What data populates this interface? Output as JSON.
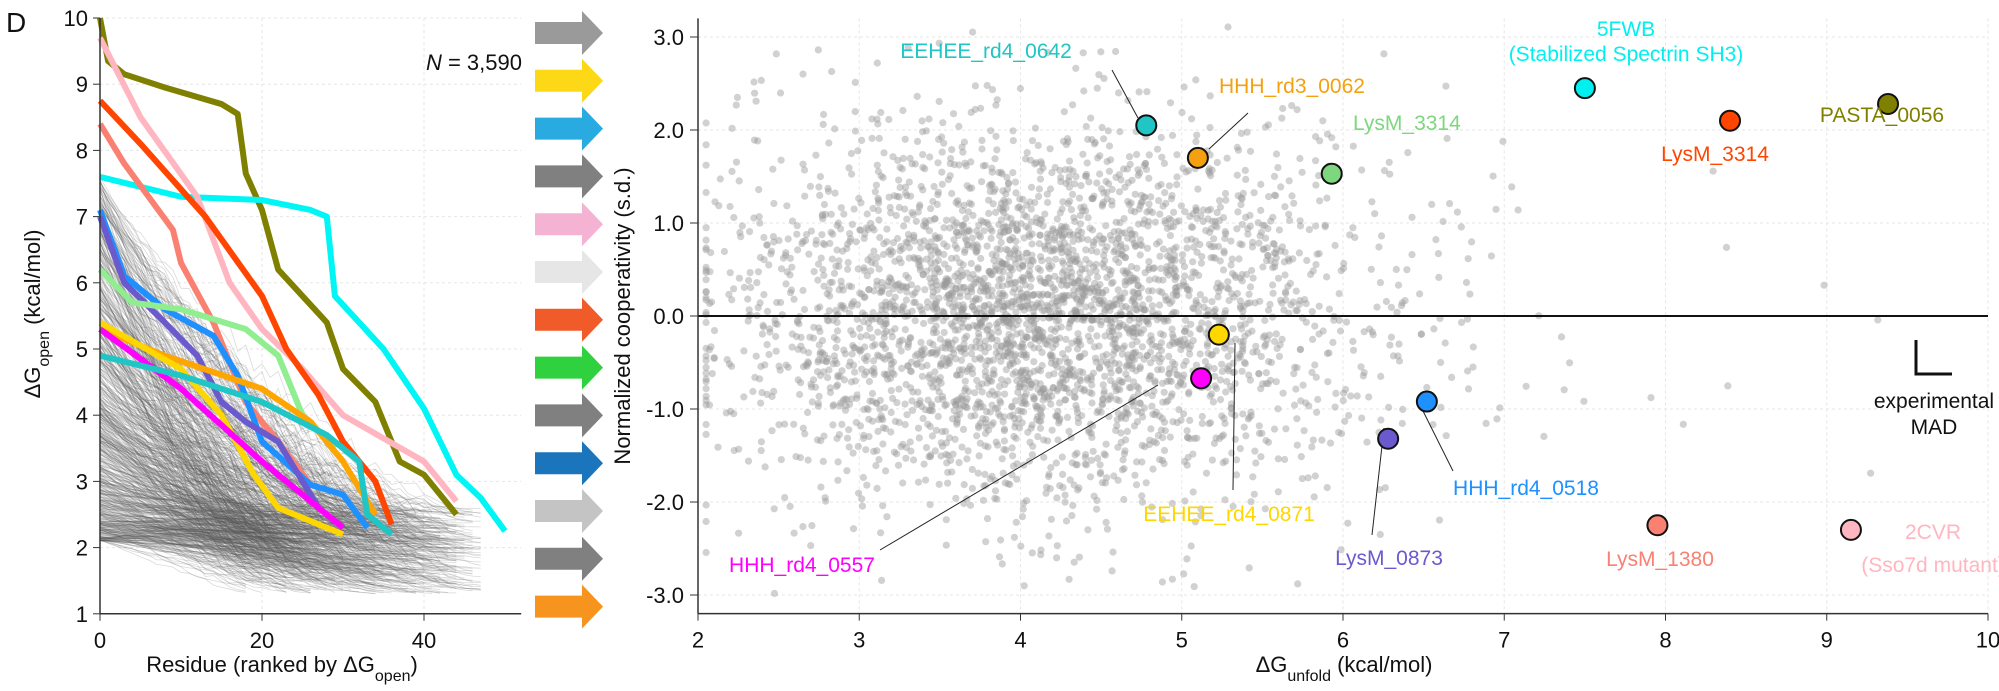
{
  "panel_label": "D",
  "arrows": {
    "colors": [
      "#9a9a9a",
      "#fdd816",
      "#29abe2",
      "#808080",
      "#f5b3d3",
      "#e6e6e6",
      "#f15a29",
      "#2fd13f",
      "#808080",
      "#1b75bc",
      "#c4c4c4",
      "#808080",
      "#f7941d"
    ]
  },
  "chart_data": [
    {
      "type": "line",
      "title": "",
      "annotation": {
        "italic": "N",
        "text": " = 3,590"
      },
      "xlabel": {
        "main": "Residue (ranked by ΔG",
        "sub": "open",
        "end": ")"
      },
      "ylabel": {
        "main": "ΔG",
        "sub": "open",
        "end": " (kcal/mol)"
      },
      "xlim": [
        0,
        52
      ],
      "ylim": [
        1,
        10
      ],
      "xticks": [
        "0",
        "20",
        "40"
      ],
      "xtick_values": [
        0,
        20,
        40
      ],
      "yticks": [
        "1",
        "2",
        "3",
        "4",
        "5",
        "6",
        "7",
        "8",
        "9",
        "10"
      ],
      "ytick_values": [
        1,
        2,
        3,
        4,
        5,
        6,
        7,
        8,
        9,
        10
      ],
      "grid": true,
      "background_series_count": 3590,
      "background_color": "#555555",
      "series": [
        {
          "name": "PASTA_0056",
          "color": "#808000",
          "points": [
            [
              0,
              10
            ],
            [
              1,
              9.35
            ],
            [
              3,
              9.15
            ],
            [
              8,
              8.95
            ],
            [
              15,
              8.7
            ],
            [
              17,
              8.55
            ],
            [
              18,
              7.65
            ],
            [
              20,
              7.1
            ],
            [
              22,
              6.2
            ],
            [
              25,
              5.8
            ],
            [
              28,
              5.4
            ],
            [
              30,
              4.7
            ],
            [
              34,
              4.2
            ],
            [
              37,
              3.3
            ],
            [
              40,
              3.1
            ],
            [
              44,
              2.5
            ]
          ]
        },
        {
          "name": "5FWB",
          "color": "#00f5f5",
          "points": [
            [
              0,
              7.6
            ],
            [
              10,
              7.3
            ],
            [
              20,
              7.25
            ],
            [
              26,
              7.1
            ],
            [
              28,
              7.0
            ],
            [
              29,
              5.8
            ],
            [
              35,
              5.0
            ],
            [
              40,
              4.1
            ],
            [
              44,
              3.1
            ],
            [
              47,
              2.75
            ],
            [
              50,
              2.25
            ]
          ]
        },
        {
          "name": "2CVR",
          "color": "#ffb6c1",
          "points": [
            [
              0,
              9.7
            ],
            [
              5,
              8.5
            ],
            [
              12,
              7.3
            ],
            [
              16,
              6.0
            ],
            [
              20,
              5.3
            ],
            [
              25,
              4.7
            ],
            [
              30,
              4.0
            ],
            [
              40,
              3.3
            ],
            [
              44,
              2.7
            ]
          ]
        },
        {
          "name": "LysM_3314 (red)",
          "color": "#ff4500",
          "points": [
            [
              0,
              8.75
            ],
            [
              5,
              8.1
            ],
            [
              13,
              7.0
            ],
            [
              20,
              5.8
            ],
            [
              23,
              5.0
            ],
            [
              27,
              4.3
            ],
            [
              30,
              3.6
            ],
            [
              34,
              3.0
            ],
            [
              36,
              2.35
            ]
          ]
        },
        {
          "name": "LysM_1380",
          "color": "#fa8072",
          "points": [
            [
              0,
              8.4
            ],
            [
              3,
              7.8
            ],
            [
              9,
              6.8
            ],
            [
              10,
              6.3
            ],
            [
              14,
              5.4
            ],
            [
              18,
              4.2
            ],
            [
              22,
              3.6
            ],
            [
              26,
              2.95
            ]
          ]
        },
        {
          "name": "HHH_rd4_0518",
          "color": "#1e90ff",
          "points": [
            [
              0,
              7.1
            ],
            [
              3,
              6.1
            ],
            [
              8,
              5.6
            ],
            [
              14,
              5.2
            ],
            [
              17,
              4.6
            ],
            [
              20,
              3.6
            ],
            [
              26,
              2.95
            ],
            [
              30,
              2.8
            ],
            [
              33,
              2.3
            ]
          ]
        },
        {
          "name": "LysM_0873",
          "color": "#6a5acd",
          "points": [
            [
              0,
              7.0
            ],
            [
              3,
              6.0
            ],
            [
              8,
              5.4
            ],
            [
              12,
              4.9
            ],
            [
              15,
              4.2
            ],
            [
              18,
              3.9
            ],
            [
              22,
              3.6
            ],
            [
              27,
              2.6
            ]
          ]
        },
        {
          "name": "LysM_3314 (green)",
          "color": "#90ee90",
          "points": [
            [
              0,
              6.2
            ],
            [
              4,
              5.7
            ],
            [
              10,
              5.6
            ],
            [
              18,
              5.3
            ],
            [
              22,
              4.9
            ],
            [
              25,
              4.0
            ],
            [
              29,
              3.5
            ]
          ]
        },
        {
          "name": "HHH_rd3_0062",
          "color": "#ffa500",
          "points": [
            [
              0,
              5.3
            ],
            [
              8,
              4.9
            ],
            [
              20,
              4.4
            ],
            [
              26,
              3.9
            ],
            [
              30,
              3.3
            ],
            [
              34,
              2.5
            ]
          ]
        },
        {
          "name": "EEHEE_rd4_0871",
          "color": "#ffd700",
          "points": [
            [
              0,
              5.4
            ],
            [
              10,
              4.7
            ],
            [
              15,
              4.0
            ],
            [
              19,
              3.1
            ],
            [
              22,
              2.6
            ],
            [
              30,
              2.2
            ]
          ]
        },
        {
          "name": "HHH_rd4_0557",
          "color": "#ff00ff",
          "points": [
            [
              0,
              5.3
            ],
            [
              10,
              4.4
            ],
            [
              20,
              3.3
            ],
            [
              30,
              2.3
            ]
          ]
        },
        {
          "name": "EEHEE_rd4_0642",
          "color": "#20c5c5",
          "points": [
            [
              0,
              4.9
            ],
            [
              10,
              4.6
            ],
            [
              20,
              4.2
            ],
            [
              28,
              3.7
            ],
            [
              32,
              3.3
            ],
            [
              33,
              2.5
            ],
            [
              36,
              2.2
            ]
          ]
        }
      ]
    },
    {
      "type": "scatter",
      "title": "",
      "xlabel": {
        "main": "ΔG",
        "sub": "unfold",
        "end": "  (kcal/mol)"
      },
      "ylabel": "Normalized cooperativity (s.d.)",
      "xlim": [
        2,
        10
      ],
      "ylim": [
        -3.2,
        3.2
      ],
      "xticks": [
        "2",
        "3",
        "4",
        "5",
        "6",
        "7",
        "8",
        "9",
        "10"
      ],
      "xtick_values": [
        2,
        3,
        4,
        5,
        6,
        7,
        8,
        9,
        10
      ],
      "yticks": [
        "3.0",
        "2.0",
        "1.0",
        "0.0",
        "-1.0",
        "-2.0",
        "-3.0"
      ],
      "ytick_values": [
        3,
        2,
        1,
        0,
        -1,
        -2,
        -3
      ],
      "grid": true,
      "reference_line_y": 0,
      "background_point_count": 3590,
      "background_color": "#9a9a9a",
      "mad_legend": [
        "experimental",
        "MAD"
      ],
      "highlighted": [
        {
          "label": [
            "EEHEE_rd4_0642"
          ],
          "x": 4.78,
          "y": 2.05,
          "color": "#20c5c5"
        },
        {
          "label": [
            "HHH_rd3_0062"
          ],
          "x": 5.1,
          "y": 1.7,
          "color": "#f5a00f"
        },
        {
          "label": [
            "LysM_3314"
          ],
          "x": 5.93,
          "y": 1.53,
          "color": "#7ed67e"
        },
        {
          "label": [
            "5FWB",
            "(Stabilized Spectrin SH3)"
          ],
          "x": 7.5,
          "y": 2.45,
          "color": "#00f0f0"
        },
        {
          "label": [
            "LysM_3314"
          ],
          "x": 8.4,
          "y": 2.1,
          "color": "#ff4500"
        },
        {
          "label": [
            "PASTA_0056"
          ],
          "x": 9.38,
          "y": 2.28,
          "color": "#808000"
        },
        {
          "label": [
            "EEHEE_rd4_0871"
          ],
          "x": 5.23,
          "y": -0.2,
          "color": "#ffd700"
        },
        {
          "label": [
            "HHH_rd4_0557"
          ],
          "x": 5.12,
          "y": -0.67,
          "color": "#ff00ff"
        },
        {
          "label": [
            "HHH_rd4_0518"
          ],
          "x": 6.52,
          "y": -0.92,
          "color": "#1e90ff"
        },
        {
          "label": [
            "LysM_0873"
          ],
          "x": 6.28,
          "y": -1.32,
          "color": "#6a5acd"
        },
        {
          "label": [
            "LysM_1380"
          ],
          "x": 7.95,
          "y": -2.25,
          "color": "#fa8072"
        },
        {
          "label": [
            "2CVR",
            "(Sso7d mutant)"
          ],
          "x": 9.15,
          "y": -2.3,
          "color": "#ffb6c1"
        }
      ]
    }
  ]
}
